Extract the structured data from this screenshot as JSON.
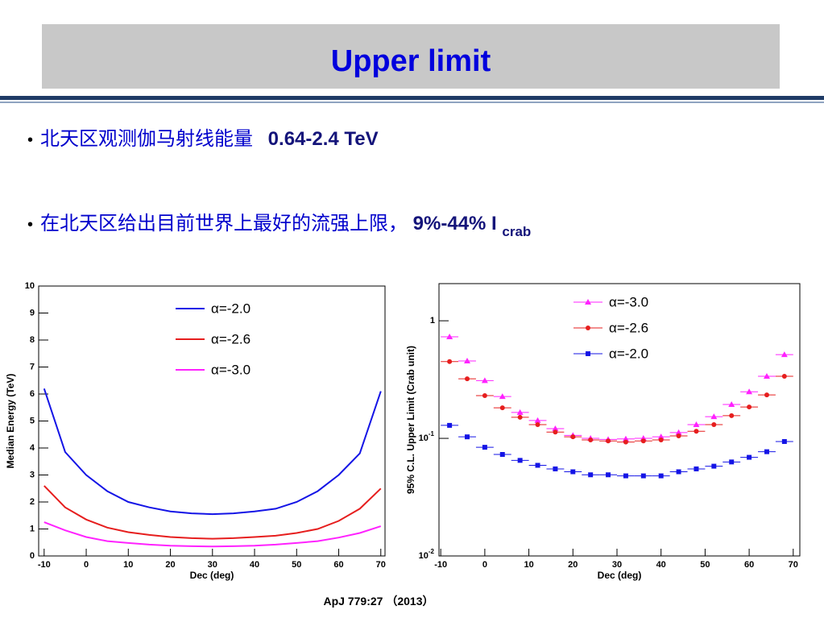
{
  "slide": {
    "title": "Upper limit",
    "bullets": [
      {
        "cjk": "北天区观测伽马射线能量",
        "en": "0.64-2.4 TeV"
      },
      {
        "cjk": "在北天区给出目前世界上最好的流强上限，",
        "en": "9%-44% I",
        "sub": "crab"
      }
    ],
    "footer": "ApJ 779:27 （2013）"
  },
  "chart_data": [
    {
      "type": "line",
      "xlabel": "Dec (deg)",
      "ylabel": "Median Energy (TeV)",
      "x": [
        -10,
        -5,
        0,
        5,
        10,
        15,
        20,
        25,
        30,
        35,
        40,
        45,
        50,
        55,
        60,
        65,
        70
      ],
      "xlim": [
        -11.3,
        71
      ],
      "xticks": [
        -10,
        0,
        10,
        20,
        30,
        40,
        50,
        60,
        70
      ],
      "ylim": [
        0,
        10
      ],
      "yticks": [
        0,
        1,
        2,
        3,
        4,
        5,
        6,
        7,
        8,
        9,
        10
      ],
      "series": [
        {
          "name": "α=-2.0",
          "color": "#1414e6",
          "values": [
            6.2,
            3.85,
            3.0,
            2.4,
            2.0,
            1.8,
            1.65,
            1.58,
            1.55,
            1.58,
            1.65,
            1.75,
            2.0,
            2.4,
            3.0,
            3.8,
            6.1
          ]
        },
        {
          "name": "α=-2.6",
          "color": "#e61e1e",
          "values": [
            2.6,
            1.8,
            1.35,
            1.05,
            0.88,
            0.78,
            0.7,
            0.66,
            0.64,
            0.66,
            0.7,
            0.75,
            0.85,
            1.0,
            1.3,
            1.75,
            2.5
          ]
        },
        {
          "name": "α=-3.0",
          "color": "#ff22ff",
          "values": [
            1.25,
            0.95,
            0.7,
            0.55,
            0.48,
            0.42,
            0.38,
            0.36,
            0.35,
            0.36,
            0.38,
            0.42,
            0.48,
            0.55,
            0.68,
            0.85,
            1.1
          ]
        }
      ]
    },
    {
      "type": "scatter",
      "log_y": true,
      "xlabel": "Dec (deg)",
      "ylabel": "95% C.L. Upper Limit (Crab unit)",
      "x": [
        -8,
        -4,
        0,
        4,
        8,
        12,
        16,
        20,
        24,
        28,
        32,
        36,
        40,
        44,
        48,
        52,
        56,
        60,
        64,
        68
      ],
      "xerr": 2,
      "xlim": [
        -10.4,
        71.5
      ],
      "xticks": [
        -10,
        0,
        10,
        20,
        30,
        40,
        50,
        60,
        70
      ],
      "ylim": [
        0.01,
        2.07
      ],
      "yticks": [
        {
          "value": 0.01,
          "label": "10",
          "exponent": "-2"
        },
        {
          "value": 0.1,
          "label": "10",
          "exponent": "-1"
        },
        1
      ],
      "series": [
        {
          "name": "α=-3.0",
          "color": "#ff22ff",
          "marker": "triangle",
          "values": [
            0.73,
            0.455,
            0.31,
            0.227,
            0.166,
            0.142,
            0.121,
            0.106,
            0.1,
            0.098,
            0.099,
            0.1,
            0.103,
            0.112,
            0.131,
            0.153,
            0.194,
            0.249,
            0.337,
            0.515
          ]
        },
        {
          "name": "α=-2.6",
          "color": "#e61e1e",
          "marker": "circle",
          "values": [
            0.45,
            0.321,
            0.231,
            0.182,
            0.151,
            0.131,
            0.113,
            0.103,
            0.097,
            0.095,
            0.093,
            0.095,
            0.097,
            0.105,
            0.115,
            0.131,
            0.156,
            0.185,
            0.234,
            0.337
          ]
        },
        {
          "name": "α=-2.0",
          "color": "#1414e6",
          "marker": "square",
          "values": [
            0.129,
            0.103,
            0.084,
            0.073,
            0.065,
            0.059,
            0.055,
            0.052,
            0.049,
            0.049,
            0.048,
            0.048,
            0.048,
            0.052,
            0.055,
            0.058,
            0.063,
            0.069,
            0.077,
            0.094
          ]
        }
      ]
    }
  ]
}
